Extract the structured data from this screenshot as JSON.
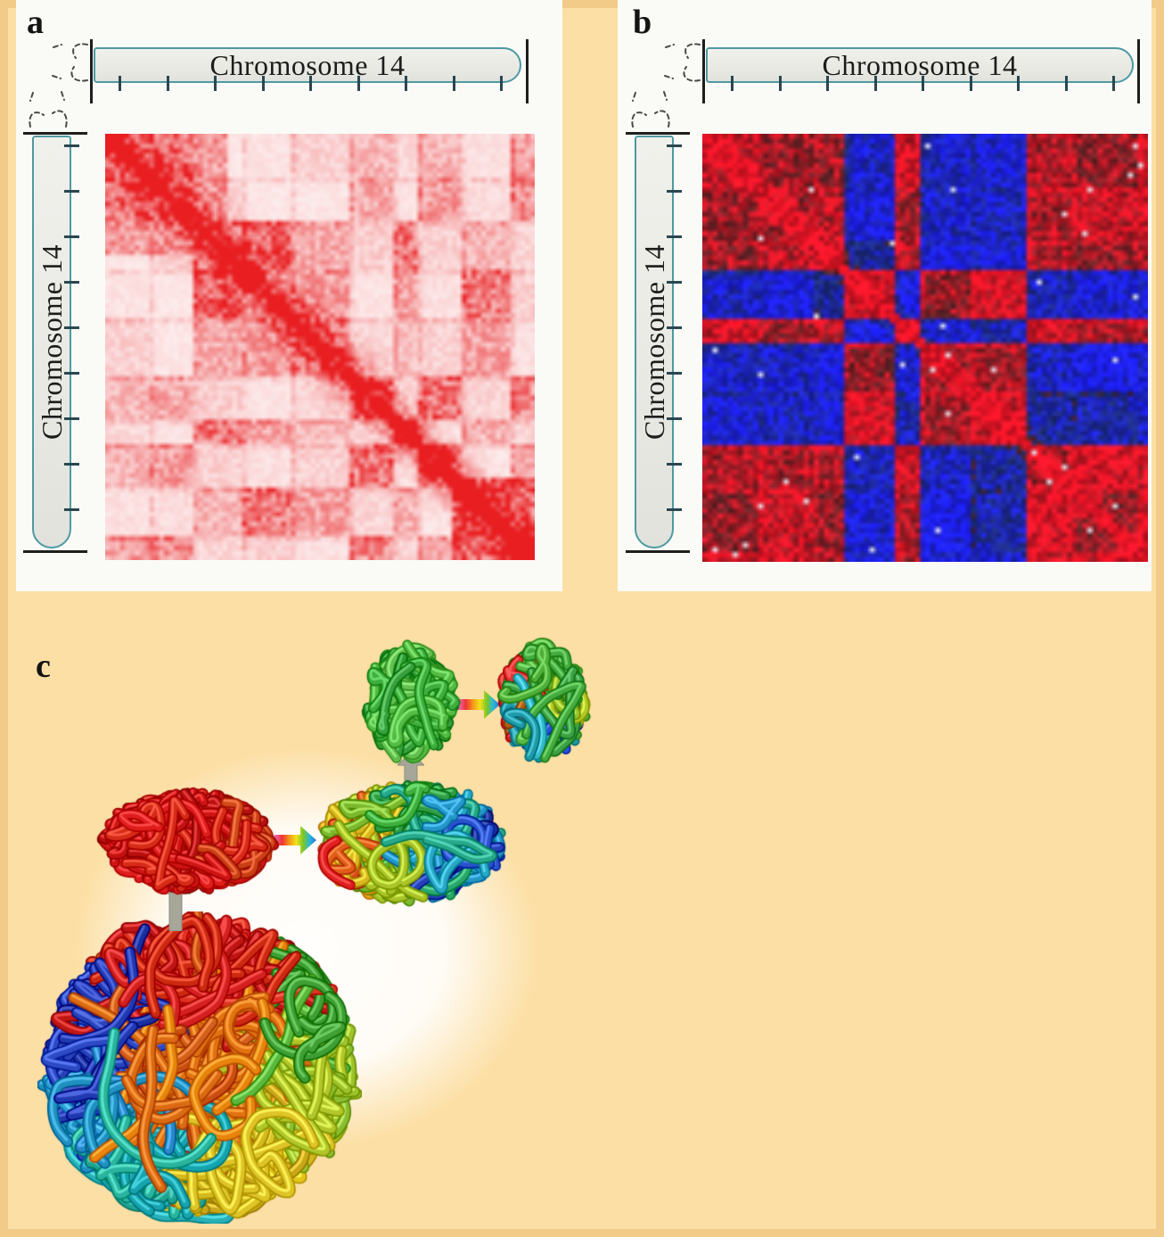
{
  "figure": {
    "kind": "multi-panel scientific figure",
    "background_color": "#fcdfa4",
    "frame_color": "#e8b671",
    "panel_background": "#fafbf7"
  },
  "panels": {
    "a": {
      "label": "a",
      "ideogram_top": {
        "label": "Chromosome 14",
        "tick_count": 9
      },
      "ideogram_left": {
        "label": "Chromosome 14",
        "tick_count": 9
      },
      "heatmap": {
        "colormap": "white-to-red",
        "description": "Hi-C intrachromosomal contact frequency map"
      }
    },
    "b": {
      "label": "b",
      "ideogram_top": {
        "label": "Chromosome 14",
        "tick_count": 9
      },
      "ideogram_left": {
        "label": "Chromosome 14",
        "tick_count": 9
      },
      "heatmap": {
        "colormap": "blue-negative / red-positive correlation",
        "description": "Compartment correlation map"
      }
    },
    "c": {
      "label": "c",
      "description": "Fractal globule rendered at successive magnifications",
      "arrows": [
        "gray-up-arrow",
        "rainbow-recolor-arrow",
        "gray-up-arrow",
        "rainbow-recolor-arrow"
      ]
    }
  },
  "style": {
    "teal_border": "#4e9aa2",
    "capsule_fill": "#ececE7",
    "tick_color": "#2a4750",
    "end_bar_color": "#1e1e1c",
    "label_color": "#141412",
    "gray_arrow_fill": "#a6a798",
    "gray_arrow_edge": "#8b8c7d",
    "rainbow_arrow_stops": [
      "#f26bc7",
      "#ee3333",
      "#f59a1a",
      "#f2e11c",
      "#7ec822",
      "#2ab7d9",
      "#2b6ce0"
    ],
    "hic_red": "#e81e1e",
    "corr_red": "#c22828",
    "corr_blue": "#2b3fb4"
  },
  "chart_data": [
    {
      "panel": "a",
      "type": "heatmap",
      "title": "Chromosome 14 intrachromosomal contact matrix",
      "xlabel": "Chromosome 14 position (ideogram with 9 unlabeled ticks)",
      "ylabel": "Chromosome 14 position (ideogram with 9 unlabeled ticks)",
      "colormap": "white (low) to red (high contact frequency)",
      "numeric_labels_shown": false,
      "visible_features": [
        "strong red main diagonal from top-left to bottom-right",
        "plaid / checkerboard block pattern of pink blocks",
        "dense dark-red region over roughly the first quarter (top-left)",
        "dense dark-red block in the bottom-right corner",
        "faint red grid lines at block boundaries"
      ]
    },
    {
      "panel": "b",
      "type": "heatmap",
      "title": "Chromosome 14 correlation matrix",
      "xlabel": "Chromosome 14 position (ideogram with 9 unlabeled ticks)",
      "ylabel": "Chromosome 14 position (ideogram with 9 unlabeled ticks)",
      "colormap": "blue (negative correlation) to red (positive correlation), dark rendering",
      "numeric_labels_shown": false,
      "visible_features": [
        "red/blue checkerboard compartment pattern",
        "thin bright-red diagonal with small diamond-shaped bulges",
        "red web along block boundaries",
        "sparse white speckles"
      ]
    },
    {
      "panel": "c",
      "type": "illustration",
      "title": "Fractal globule at successive zoom levels",
      "elements": [
        "large multicolour (rainbow-segmented) fractal globule sphere",
        "gray up arrow to red sub-region tangle",
        "rainbow recolour arrow to locally recoloured tangle (red-orange-green-cyan-blue)",
        "gray up arrow to green sub-sub-region tangle",
        "rainbow recolour arrow to rainbow recoloured small tangle"
      ]
    }
  ],
  "generation": {
    "hic_a": {
      "seed": 11,
      "n": 88,
      "block_min": 5,
      "block_max": 13,
      "dense_topleft": 0.28,
      "dense_bottomright": 0.8
    },
    "corr_b": {
      "seed": 5,
      "n": 88,
      "block_min": 5,
      "block_max": 13
    },
    "tangles": {
      "big": {
        "seed": 101,
        "strokes": 440,
        "tube": 9,
        "palette": "globule"
      },
      "red": {
        "seed": 57,
        "strokes": 125,
        "tube": 8,
        "palette": "red"
      },
      "mid": {
        "seed": 77,
        "strokes": 145,
        "tube": 8,
        "palette": "rainbow_x"
      },
      "green": {
        "seed": 33,
        "strokes": 64,
        "tube": 8,
        "palette": "green"
      },
      "small": {
        "seed": 91,
        "strokes": 60,
        "tube": 7.5,
        "palette": "rainbow_xy"
      }
    }
  }
}
